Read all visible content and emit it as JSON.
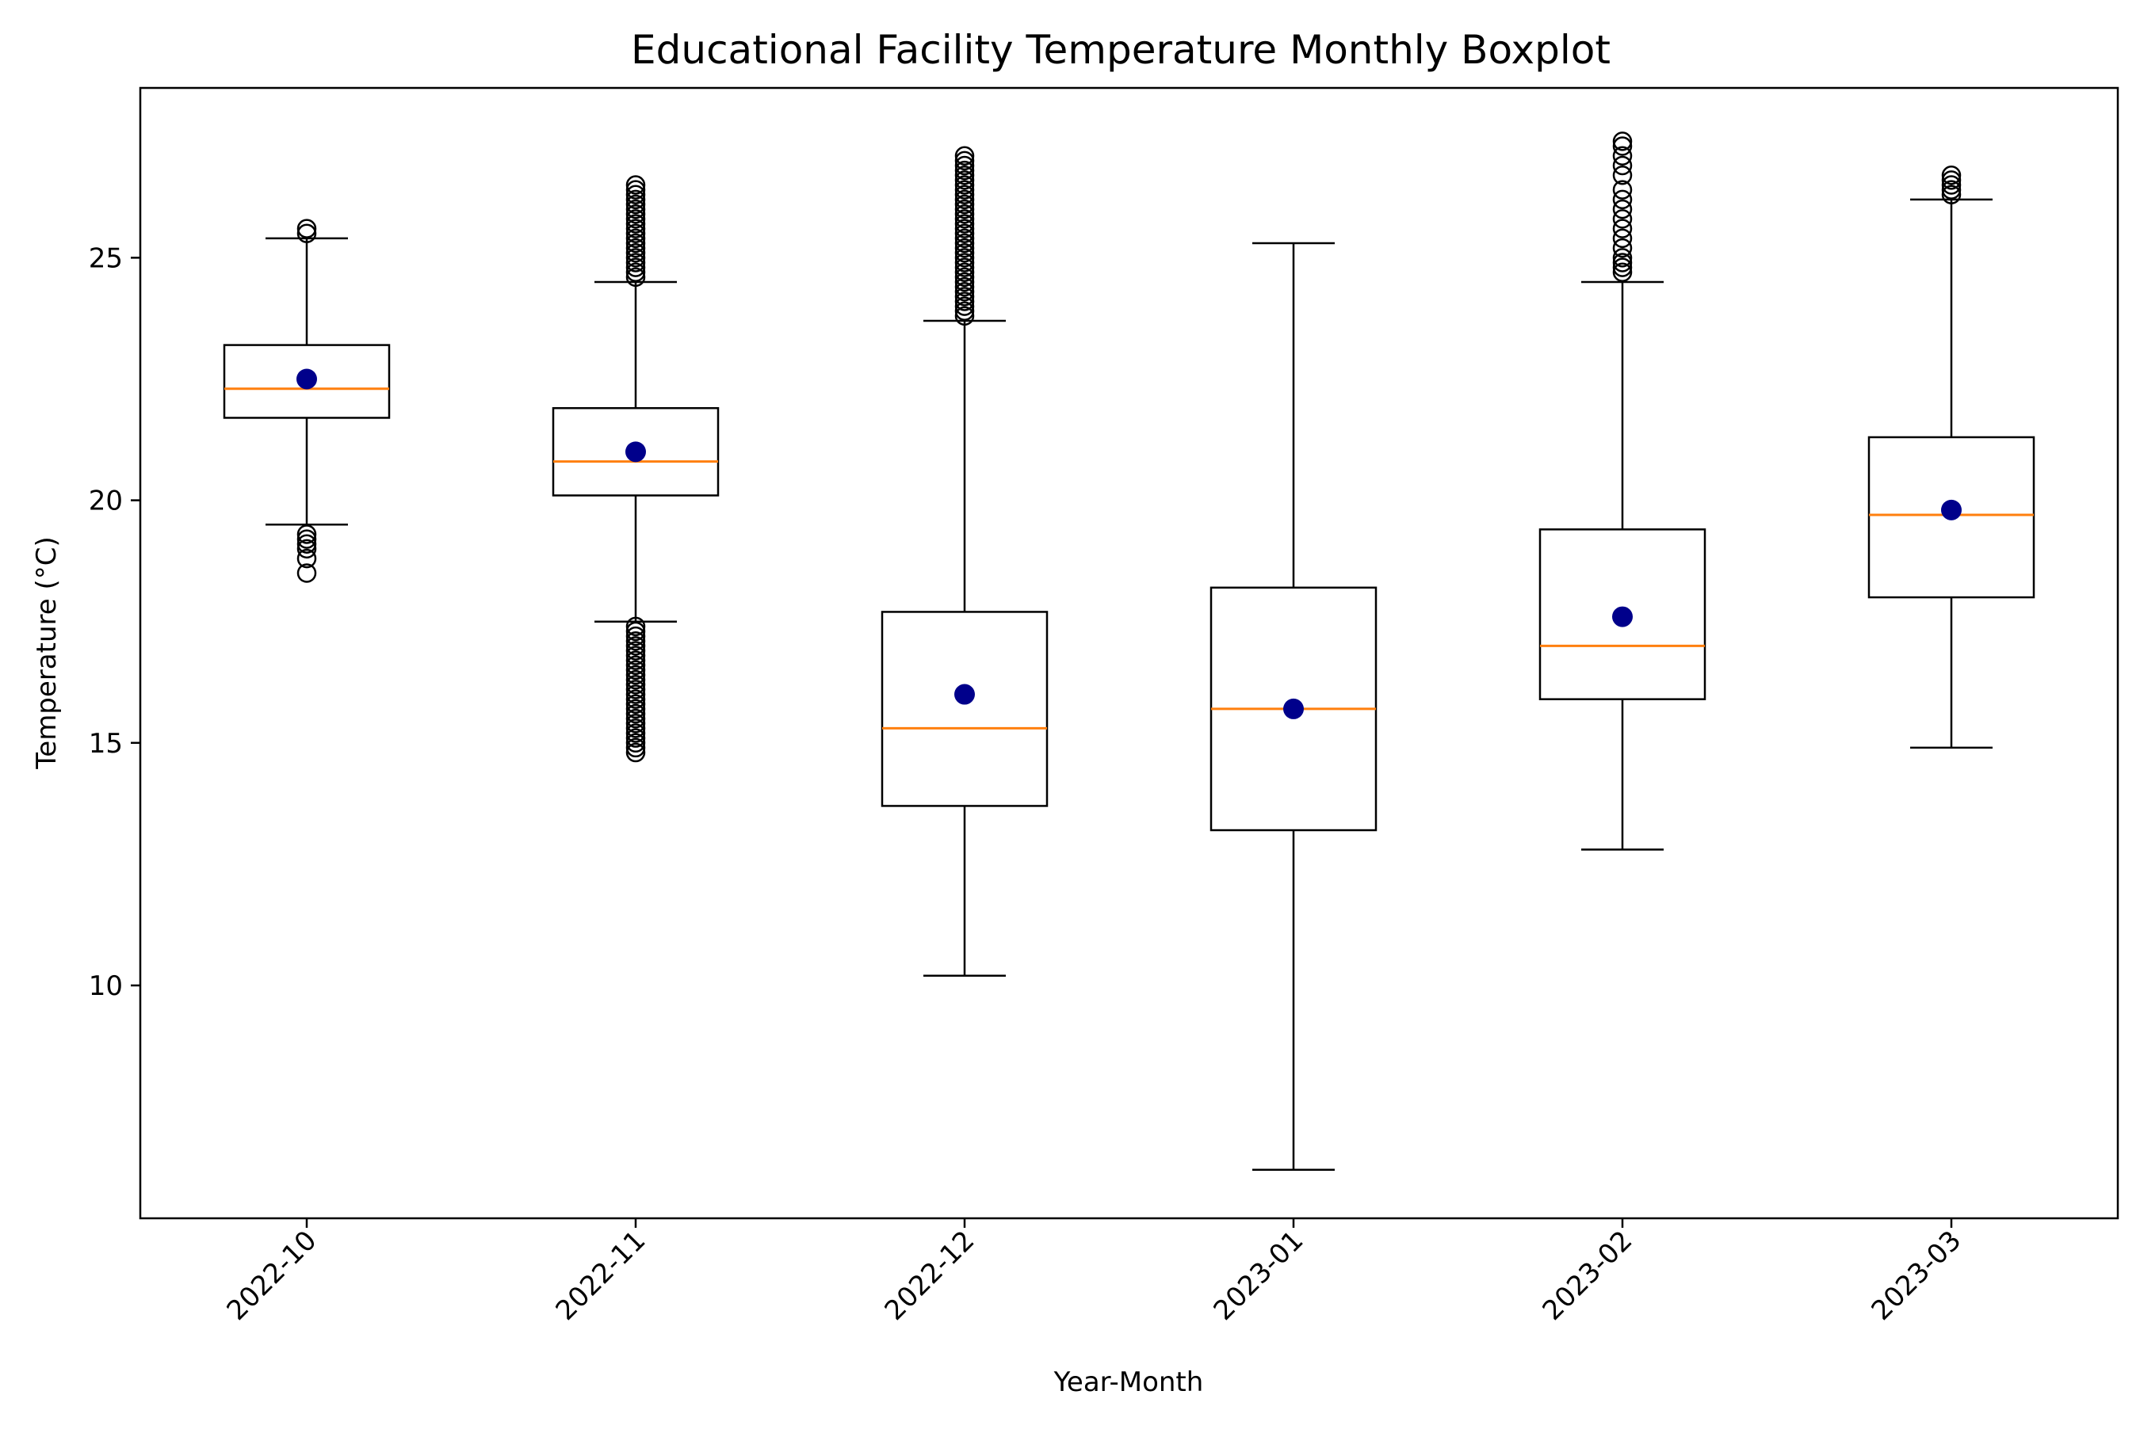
{
  "chart_data": {
    "type": "boxplot",
    "title": "Educational Facility Temperature Monthly Boxplot",
    "xlabel": "Year-Month",
    "ylabel": "Temperature (°C)",
    "ylim": [
      5.2,
      28.5
    ],
    "yticks": [
      10,
      15,
      20,
      25
    ],
    "grid": false,
    "legend": "none",
    "categories": [
      "2022-10",
      "2022-11",
      "2022-12",
      "2023-01",
      "2023-02",
      "2023-03"
    ],
    "boxes": [
      {
        "category": "2022-10",
        "whisker_low": 19.5,
        "q1": 21.7,
        "median": 22.3,
        "q3": 23.2,
        "whisker_high": 25.4,
        "mean": 22.5,
        "outliers": [
          18.5,
          18.8,
          19.0,
          19.1,
          19.2,
          19.3,
          25.5,
          25.6
        ]
      },
      {
        "category": "2022-11",
        "whisker_low": 17.5,
        "q1": 20.1,
        "median": 20.8,
        "q3": 21.9,
        "whisker_high": 24.5,
        "mean": 21.0,
        "outliers": [
          14.8,
          14.9,
          15.0,
          15.1,
          15.2,
          15.3,
          15.4,
          15.5,
          15.6,
          15.7,
          15.8,
          15.9,
          16.0,
          16.1,
          16.2,
          16.3,
          16.4,
          16.5,
          16.6,
          16.7,
          16.8,
          16.9,
          17.0,
          17.1,
          17.2,
          17.3,
          17.4,
          24.6,
          24.7,
          24.8,
          24.9,
          25.0,
          25.1,
          25.2,
          25.3,
          25.4,
          25.5,
          25.6,
          25.7,
          25.8,
          25.9,
          26.0,
          26.1,
          26.2,
          26.3,
          26.4,
          26.5
        ]
      },
      {
        "category": "2022-12",
        "whisker_low": 10.2,
        "q1": 13.7,
        "median": 15.3,
        "q3": 17.7,
        "whisker_high": 23.7,
        "mean": 16.0,
        "outliers": [
          23.8,
          23.9,
          24.0,
          24.1,
          24.2,
          24.3,
          24.4,
          24.5,
          24.6,
          24.7,
          24.8,
          24.9,
          25.0,
          25.1,
          25.2,
          25.3,
          25.4,
          25.5,
          25.6,
          25.7,
          25.8,
          25.9,
          26.0,
          26.1,
          26.2,
          26.3,
          26.4,
          26.5,
          26.6,
          26.7,
          26.8,
          26.9,
          27.0,
          27.1
        ]
      },
      {
        "category": "2023-01",
        "whisker_low": 6.2,
        "q1": 13.2,
        "median": 15.7,
        "q3": 18.2,
        "whisker_high": 25.3,
        "mean": 15.7,
        "outliers": []
      },
      {
        "category": "2023-02",
        "whisker_low": 12.8,
        "q1": 15.9,
        "median": 17.0,
        "q3": 19.4,
        "whisker_high": 24.5,
        "mean": 17.6,
        "outliers": [
          24.7,
          24.8,
          24.9,
          25.0,
          25.2,
          25.4,
          25.6,
          25.8,
          26.0,
          26.2,
          26.4,
          26.7,
          26.9,
          27.1,
          27.3,
          27.4
        ]
      },
      {
        "category": "2023-03",
        "whisker_low": 14.9,
        "q1": 18.0,
        "median": 19.7,
        "q3": 21.3,
        "whisker_high": 26.2,
        "mean": 19.8,
        "outliers": [
          26.3,
          26.4,
          26.5,
          26.6,
          26.7
        ]
      }
    ],
    "colors": {
      "box": "#000000",
      "median": "#ff7f0e",
      "mean": "#00008b",
      "outlier_edge": "#000000"
    }
  }
}
